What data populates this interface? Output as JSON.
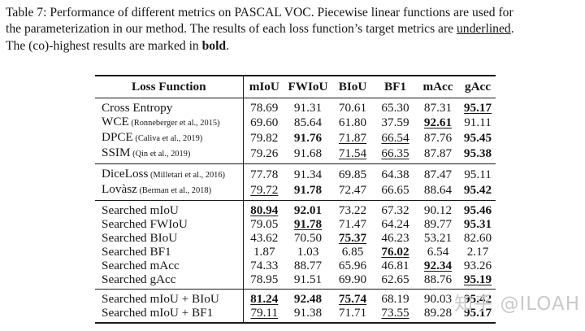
{
  "caption": {
    "lines": [
      {
        "segments": [
          {
            "text": "Table 7: Performance of different metrics on PASCAL VOC. Piecewise linear functions are used for",
            "style": "normal"
          }
        ]
      },
      {
        "segments": [
          {
            "text": "the parameterization in our method. The results of each loss function’s target metrics are ",
            "style": "normal"
          },
          {
            "text": "underlined",
            "style": "underline"
          },
          {
            "text": ".",
            "style": "normal"
          }
        ]
      },
      {
        "segments": [
          {
            "text": "The (co)-highest results are marked in ",
            "style": "normal"
          },
          {
            "text": "bold",
            "style": "bold"
          },
          {
            "text": ".",
            "style": "normal"
          }
        ]
      }
    ]
  },
  "table": {
    "header": {
      "loss_function_label": "Loss Function",
      "metric_labels": [
        "mIoU",
        "FWIoU",
        "BIoU",
        "BF1",
        "mAcc",
        "gAcc"
      ]
    },
    "groups": [
      {
        "rows": [
          {
            "name": "Cross Entropy",
            "citation": "",
            "values": [
              {
                "v": "78.69"
              },
              {
                "v": "91.31"
              },
              {
                "v": "70.61"
              },
              {
                "v": "65.30"
              },
              {
                "v": "87.31"
              },
              {
                "v": "95.17",
                "bold": true,
                "underline": true
              }
            ]
          },
          {
            "name": "WCE",
            "citation": "(Ronneberger et al., 2015)",
            "values": [
              {
                "v": "69.60"
              },
              {
                "v": "85.64"
              },
              {
                "v": "61.80"
              },
              {
                "v": "37.59"
              },
              {
                "v": "92.61",
                "bold": true,
                "underline": true
              },
              {
                "v": "91.11"
              }
            ]
          },
          {
            "name": "DPCE",
            "citation": "(Caliva et al., 2019)",
            "values": [
              {
                "v": "79.82"
              },
              {
                "v": "91.76",
                "bold": true
              },
              {
                "v": "71.87",
                "underline": true
              },
              {
                "v": "66.54",
                "underline": true
              },
              {
                "v": "87.76"
              },
              {
                "v": "95.45",
                "bold": true
              }
            ]
          },
          {
            "name": "SSIM",
            "citation": "(Qin et al., 2019)",
            "values": [
              {
                "v": "79.26"
              },
              {
                "v": "91.68"
              },
              {
                "v": "71.54",
                "underline": true
              },
              {
                "v": "66.35",
                "underline": true
              },
              {
                "v": "87.87"
              },
              {
                "v": "95.38",
                "bold": true
              }
            ]
          }
        ]
      },
      {
        "rows": [
          {
            "name": "DiceLoss",
            "citation": "(Milletari et al., 2016)",
            "values": [
              {
                "v": "77.78"
              },
              {
                "v": "91.34"
              },
              {
                "v": "69.85"
              },
              {
                "v": "64.38"
              },
              {
                "v": "87.47"
              },
              {
                "v": "95.11"
              }
            ]
          },
          {
            "name": "Lovàsz",
            "citation": "(Berman et al., 2018)",
            "values": [
              {
                "v": "79.72",
                "underline": true
              },
              {
                "v": "91.78",
                "bold": true
              },
              {
                "v": "72.47"
              },
              {
                "v": "66.65"
              },
              {
                "v": "88.64"
              },
              {
                "v": "95.42",
                "bold": true
              }
            ]
          }
        ]
      },
      {
        "rows": [
          {
            "name": "Searched mIoU",
            "citation": "",
            "values": [
              {
                "v": "80.94",
                "bold": true,
                "underline": true
              },
              {
                "v": "92.01",
                "bold": true
              },
              {
                "v": "73.22"
              },
              {
                "v": "67.32"
              },
              {
                "v": "90.12"
              },
              {
                "v": "95.46",
                "bold": true
              }
            ]
          },
          {
            "name": "Searched FWIoU",
            "citation": "",
            "values": [
              {
                "v": "79.05"
              },
              {
                "v": "91.78",
                "bold": true,
                "underline": true
              },
              {
                "v": "71.47"
              },
              {
                "v": "64.24"
              },
              {
                "v": "89.77"
              },
              {
                "v": "95.31",
                "bold": true
              }
            ]
          },
          {
            "name": "Searched BIoU",
            "citation": "",
            "values": [
              {
                "v": "43.62"
              },
              {
                "v": "70.50"
              },
              {
                "v": "75.37",
                "bold": true,
                "underline": true
              },
              {
                "v": "46.23"
              },
              {
                "v": "53.21"
              },
              {
                "v": "82.60"
              }
            ]
          },
          {
            "name": "Searched BF1",
            "citation": "",
            "values": [
              {
                "v": "1.87"
              },
              {
                "v": "1.03"
              },
              {
                "v": "6.85"
              },
              {
                "v": "76.02",
                "bold": true,
                "underline": true
              },
              {
                "v": "6.54"
              },
              {
                "v": "2.17"
              }
            ]
          },
          {
            "name": "Searched mAcc",
            "citation": "",
            "values": [
              {
                "v": "74.33"
              },
              {
                "v": "88.77"
              },
              {
                "v": "65.96"
              },
              {
                "v": "46.81"
              },
              {
                "v": "92.34",
                "bold": true,
                "underline": true
              },
              {
                "v": "93.26"
              }
            ]
          },
          {
            "name": "Searched gAcc",
            "citation": "",
            "values": [
              {
                "v": "78.95"
              },
              {
                "v": "91.51"
              },
              {
                "v": "69.90"
              },
              {
                "v": "62.65"
              },
              {
                "v": "88.76"
              },
              {
                "v": "95.19",
                "bold": true,
                "underline": true
              }
            ]
          }
        ]
      },
      {
        "rows": [
          {
            "name": "Searched mIoU + BIoU",
            "citation": "",
            "values": [
              {
                "v": "81.24",
                "bold": true,
                "underline": true
              },
              {
                "v": "92.48",
                "bold": true
              },
              {
                "v": "75.74",
                "bold": true,
                "underline": true
              },
              {
                "v": "68.19"
              },
              {
                "v": "90.03"
              },
              {
                "v": "95.42",
                "bold": true
              }
            ]
          },
          {
            "name": "Searched mIoU + BF1",
            "citation": "",
            "values": [
              {
                "v": "79.11",
                "underline": true
              },
              {
                "v": "91.38"
              },
              {
                "v": "71.71"
              },
              {
                "v": "73.55",
                "underline": true
              },
              {
                "v": "89.28"
              },
              {
                "v": "95.17",
                "bold": true
              }
            ]
          }
        ]
      }
    ]
  },
  "watermark": {
    "text": "知乎 @ILOAH",
    "color": "#c9c9cb"
  }
}
